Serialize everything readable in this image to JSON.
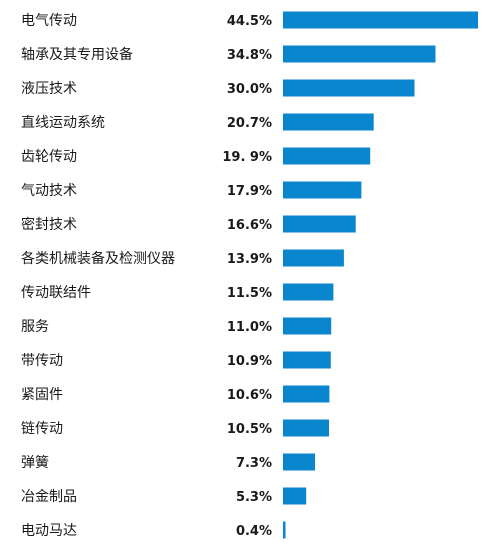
{
  "colors": {
    "bar": "#0a86cf",
    "text": "#1a1a1a",
    "background": "#ffffff"
  },
  "chart_data": {
    "type": "bar",
    "orientation": "horizontal",
    "categories": [
      "电气传动",
      "轴承及其专用设备",
      "液压技术",
      "直线运动系统",
      "齿轮传动",
      "气动技术",
      "密封技术",
      "各类机械装备及检测仪器",
      "传动联结件",
      "服务",
      "带传动",
      "紧固件",
      "链传动",
      "弹簧",
      "冶金制品",
      "电动马达"
    ],
    "values": [
      44.5,
      34.8,
      30.0,
      20.7,
      19.9,
      17.9,
      16.6,
      13.9,
      11.5,
      11.0,
      10.9,
      10.6,
      10.5,
      7.3,
      5.3,
      0.4
    ],
    "value_labels": [
      "44.5%",
      "34.8%",
      "30.0%",
      "20.7%",
      "19. 9%",
      "17.9%",
      "16.6%",
      "13.9%",
      "11.5%",
      "11.0%",
      "10.9%",
      "10.6%",
      "10.5%",
      "7.3%",
      "5.3%",
      "0.4%"
    ],
    "unit": "%",
    "xlim": [
      0,
      44.5
    ],
    "grid": false,
    "legend": "none",
    "title": "",
    "xlabel": "",
    "ylabel": ""
  }
}
